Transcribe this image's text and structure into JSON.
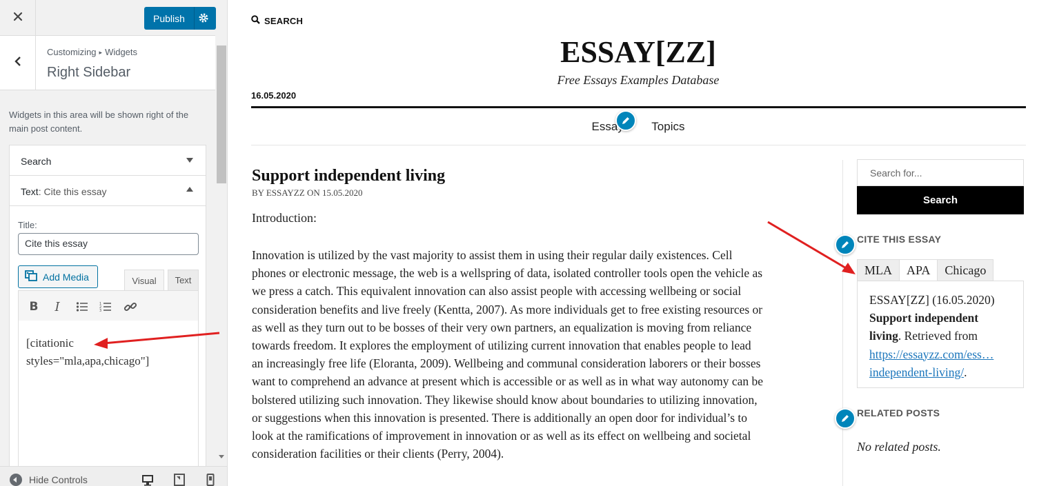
{
  "customizer": {
    "publish_label": "Publish",
    "breadcrumb": {
      "root": "Customizing",
      "current": "Widgets"
    },
    "section_title": "Right Sidebar",
    "description": "Widgets in this area will be shown right of the main post content.",
    "widgets": {
      "search": {
        "label": "Search"
      },
      "text": {
        "prefix": "Text",
        "suffix": ": Cite this essay",
        "title_label": "Title:",
        "title_value": "Cite this essay",
        "add_media_label": "Add Media",
        "tab_visual": "Visual",
        "tab_text": "Text",
        "content_line1": "[citationic",
        "content_line2": "styles=\"mla,apa,chicago\"]"
      }
    },
    "footer": {
      "hide_controls": "Hide Controls"
    },
    "colors": {
      "primary": "#0073aa",
      "panel_bg": "#f1f1f1"
    }
  },
  "preview": {
    "search_link": "SEARCH",
    "site_title": "ESSAY[ZZ]",
    "tagline": "Free Essays Examples Database",
    "date": "16.05.2020",
    "nav": [
      "Essays",
      "Topics"
    ],
    "post": {
      "title": "Support independent living",
      "byline": "BY ESSAYZZ ON 15.05.2020",
      "intro": "Introduction:",
      "body_lines": [
        "Innovation is utilized by the vast majority to assist them in using their regular daily existences. Cell",
        "phones or electronic message, the web is a wellspring of data, isolated controller tools open the vehicle as",
        "we press a catch. This equivalent innovation can also assist people with accessing wellbeing or social",
        "consideration benefits and live freely (Kentta, 2007). As more individuals get to free existing resources or",
        "as well as they turn out to be bosses of their very own partners, an equalization is moving from reliance",
        "towards freedom. It explores the employment of utilizing current innovation that enables people to lead",
        "an increasingly free life (Eloranta, 2009). Wellbeing and communal consideration laborers or their bosses",
        "want to comprehend an advance at present which is accessible or as well as in what way autonomy can be",
        "bolstered utilizing such innovation. They likewise should know about boundaries to utilizing innovation,",
        "or suggestions when this innovation is presented. There is additionally an open door for individual’s to",
        "look at the ramifications of improvement in innovation or as well as its effect on wellbeing and societal",
        "consideration facilities or their clients (Perry, 2004)."
      ]
    },
    "sidebar": {
      "search_placeholder": "Search for...",
      "search_button": "Search",
      "cite_heading": "CITE THIS ESSAY",
      "cite_tabs": [
        "MLA",
        "APA",
        "Chicago"
      ],
      "citation": {
        "source": "ESSAY[ZZ] (16.05.2020)",
        "title_line1": "Support independent",
        "title_line2": "living",
        "retrieved": ". Retrieved from",
        "url_line1": "https://essayzz.com/ess…",
        "url_line2": "independent-living/",
        "end": "."
      },
      "related_heading": "RELATED POSTS",
      "no_related": "No related posts."
    },
    "colors": {
      "link": "#1a75bb",
      "edit_pin": "#0085ba",
      "arrow": "#e02020"
    }
  }
}
